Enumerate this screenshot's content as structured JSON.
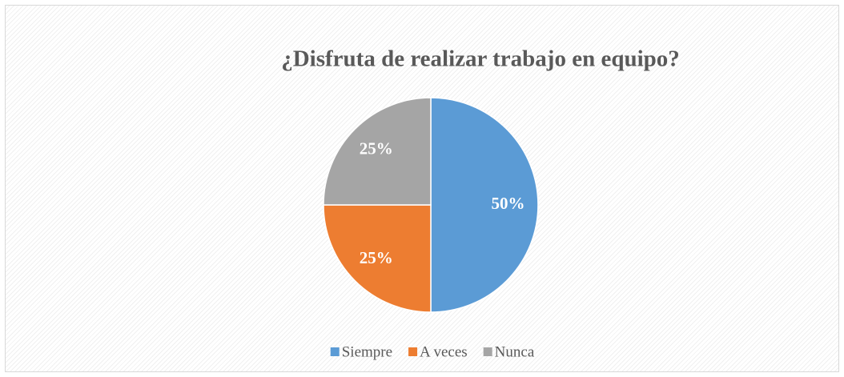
{
  "chart_data": {
    "type": "pie",
    "title": "¿Disfruta de realizar trabajo en equipo?",
    "categories": [
      "Siempre",
      "A veces",
      "Nunca"
    ],
    "values": [
      50,
      25,
      25
    ],
    "value_labels": [
      "50%",
      "25%",
      "25%"
    ],
    "colors": [
      "#5b9bd5",
      "#ed7d31",
      "#a5a5a5"
    ],
    "legend": "bottom"
  }
}
